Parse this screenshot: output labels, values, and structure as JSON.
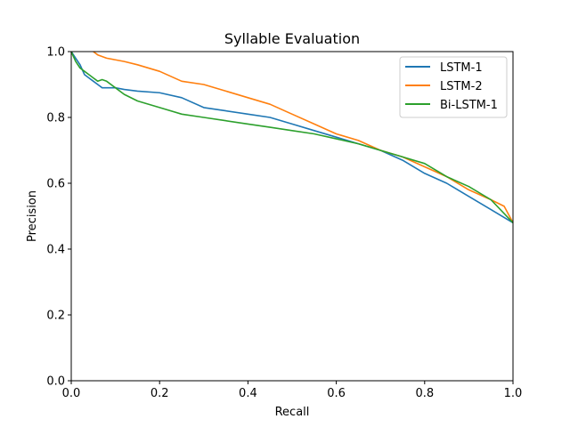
{
  "chart_data": {
    "type": "line",
    "title": "Syllable Evaluation",
    "xlabel": "Recall",
    "ylabel": "Precision",
    "xlim": [
      0.0,
      1.0
    ],
    "ylim": [
      0.0,
      1.0
    ],
    "xticks": [
      "0.0",
      "0.2",
      "0.4",
      "0.6",
      "0.8",
      "1.0"
    ],
    "yticks": [
      "0.0",
      "0.2",
      "0.4",
      "0.6",
      "0.8",
      "1.0"
    ],
    "grid": false,
    "legend_position": "top-right",
    "series": [
      {
        "name": "LSTM-1",
        "color": "#1f77b4",
        "x": [
          0.0,
          0.01,
          0.02,
          0.03,
          0.04,
          0.05,
          0.06,
          0.07,
          0.08,
          0.1,
          0.12,
          0.15,
          0.2,
          0.25,
          0.3,
          0.35,
          0.4,
          0.45,
          0.5,
          0.55,
          0.6,
          0.65,
          0.7,
          0.75,
          0.8,
          0.85,
          0.9,
          0.95,
          1.0
        ],
        "y": [
          1.0,
          0.98,
          0.96,
          0.93,
          0.92,
          0.91,
          0.9,
          0.89,
          0.89,
          0.89,
          0.885,
          0.88,
          0.875,
          0.86,
          0.83,
          0.82,
          0.81,
          0.8,
          0.78,
          0.76,
          0.74,
          0.72,
          0.7,
          0.67,
          0.63,
          0.6,
          0.56,
          0.52,
          0.48
        ]
      },
      {
        "name": "LSTM-2",
        "color": "#ff7f0e",
        "x": [
          0.05,
          0.06,
          0.08,
          0.1,
          0.12,
          0.15,
          0.2,
          0.25,
          0.3,
          0.35,
          0.4,
          0.45,
          0.5,
          0.55,
          0.6,
          0.65,
          0.7,
          0.75,
          0.8,
          0.85,
          0.9,
          0.95,
          0.98,
          1.0
        ],
        "y": [
          1.0,
          0.99,
          0.98,
          0.975,
          0.97,
          0.96,
          0.94,
          0.91,
          0.9,
          0.88,
          0.86,
          0.84,
          0.81,
          0.78,
          0.75,
          0.73,
          0.7,
          0.68,
          0.65,
          0.62,
          0.58,
          0.55,
          0.53,
          0.48
        ]
      },
      {
        "name": "Bi-LSTM-1",
        "color": "#2ca02c",
        "x": [
          0.0,
          0.01,
          0.02,
          0.03,
          0.04,
          0.05,
          0.06,
          0.07,
          0.08,
          0.1,
          0.12,
          0.15,
          0.2,
          0.25,
          0.3,
          0.35,
          0.4,
          0.45,
          0.5,
          0.55,
          0.6,
          0.65,
          0.7,
          0.75,
          0.8,
          0.85,
          0.9,
          0.95,
          1.0
        ],
        "y": [
          1.0,
          0.97,
          0.95,
          0.94,
          0.93,
          0.92,
          0.91,
          0.915,
          0.91,
          0.89,
          0.87,
          0.85,
          0.83,
          0.81,
          0.8,
          0.79,
          0.78,
          0.77,
          0.76,
          0.75,
          0.735,
          0.72,
          0.7,
          0.68,
          0.66,
          0.62,
          0.59,
          0.55,
          0.48
        ]
      }
    ]
  }
}
